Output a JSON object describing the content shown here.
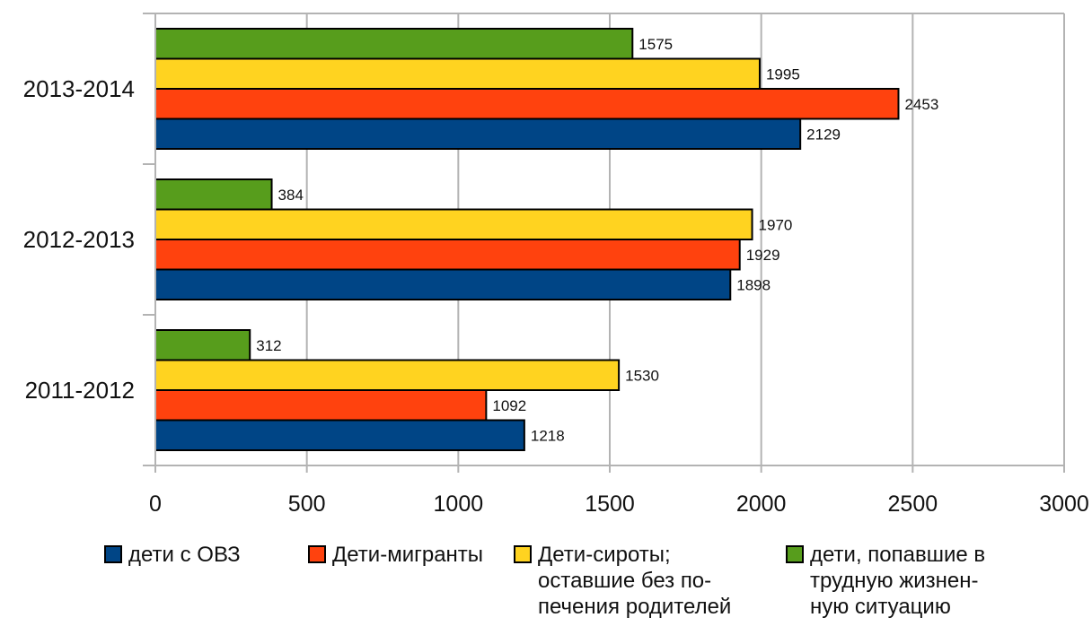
{
  "chart_data": {
    "type": "bar",
    "orientation": "horizontal",
    "categories": [
      "2011-2012",
      "2012-2013",
      "2013-2014"
    ],
    "series": [
      {
        "name": "дети с ОВЗ",
        "color": "#004586",
        "values": [
          1218,
          1898,
          2129
        ]
      },
      {
        "name": "Дети-мигранты",
        "color": "#ff420e",
        "values": [
          1092,
          1929,
          2453
        ]
      },
      {
        "name": "Дети-сироты;\nоставшие без по-\nпечения родителей",
        "color": "#ffd320",
        "values": [
          1530,
          1970,
          1995
        ]
      },
      {
        "name": "дети, попавшие в\nтрудную жизнен-\nную ситуацию",
        "color": "#579d1c",
        "values": [
          312,
          384,
          1575
        ]
      }
    ],
    "x_ticks": [
      "0",
      "500",
      "1000",
      "1500",
      "2000",
      "2500",
      "3000"
    ],
    "xlim": [
      0,
      3000
    ],
    "grid": true,
    "legend_position": "bottom",
    "data_labels": true
  }
}
